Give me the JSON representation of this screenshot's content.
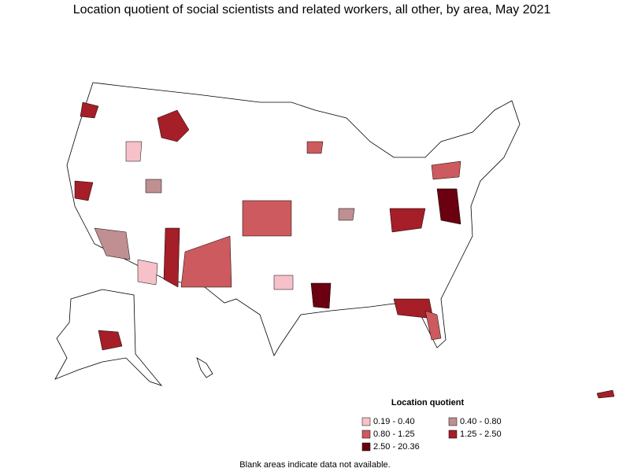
{
  "title": "Location quotient of social scientists and related workers, all other, by area, May 2021",
  "legend": {
    "title": "Location quotient",
    "items": [
      {
        "label": "0.19 - 0.40",
        "color": "#f7c1c9"
      },
      {
        "label": "0.40 - 0.80",
        "color": "#bf8f92"
      },
      {
        "label": "0.80 - 1.25",
        "color": "#cd5a5e"
      },
      {
        "label": "1.25 - 2.50",
        "color": "#a61e28"
      },
      {
        "label": "2.50 - 20.36",
        "color": "#6a0010"
      }
    ]
  },
  "footnote": "Blank areas indicate data not available."
}
